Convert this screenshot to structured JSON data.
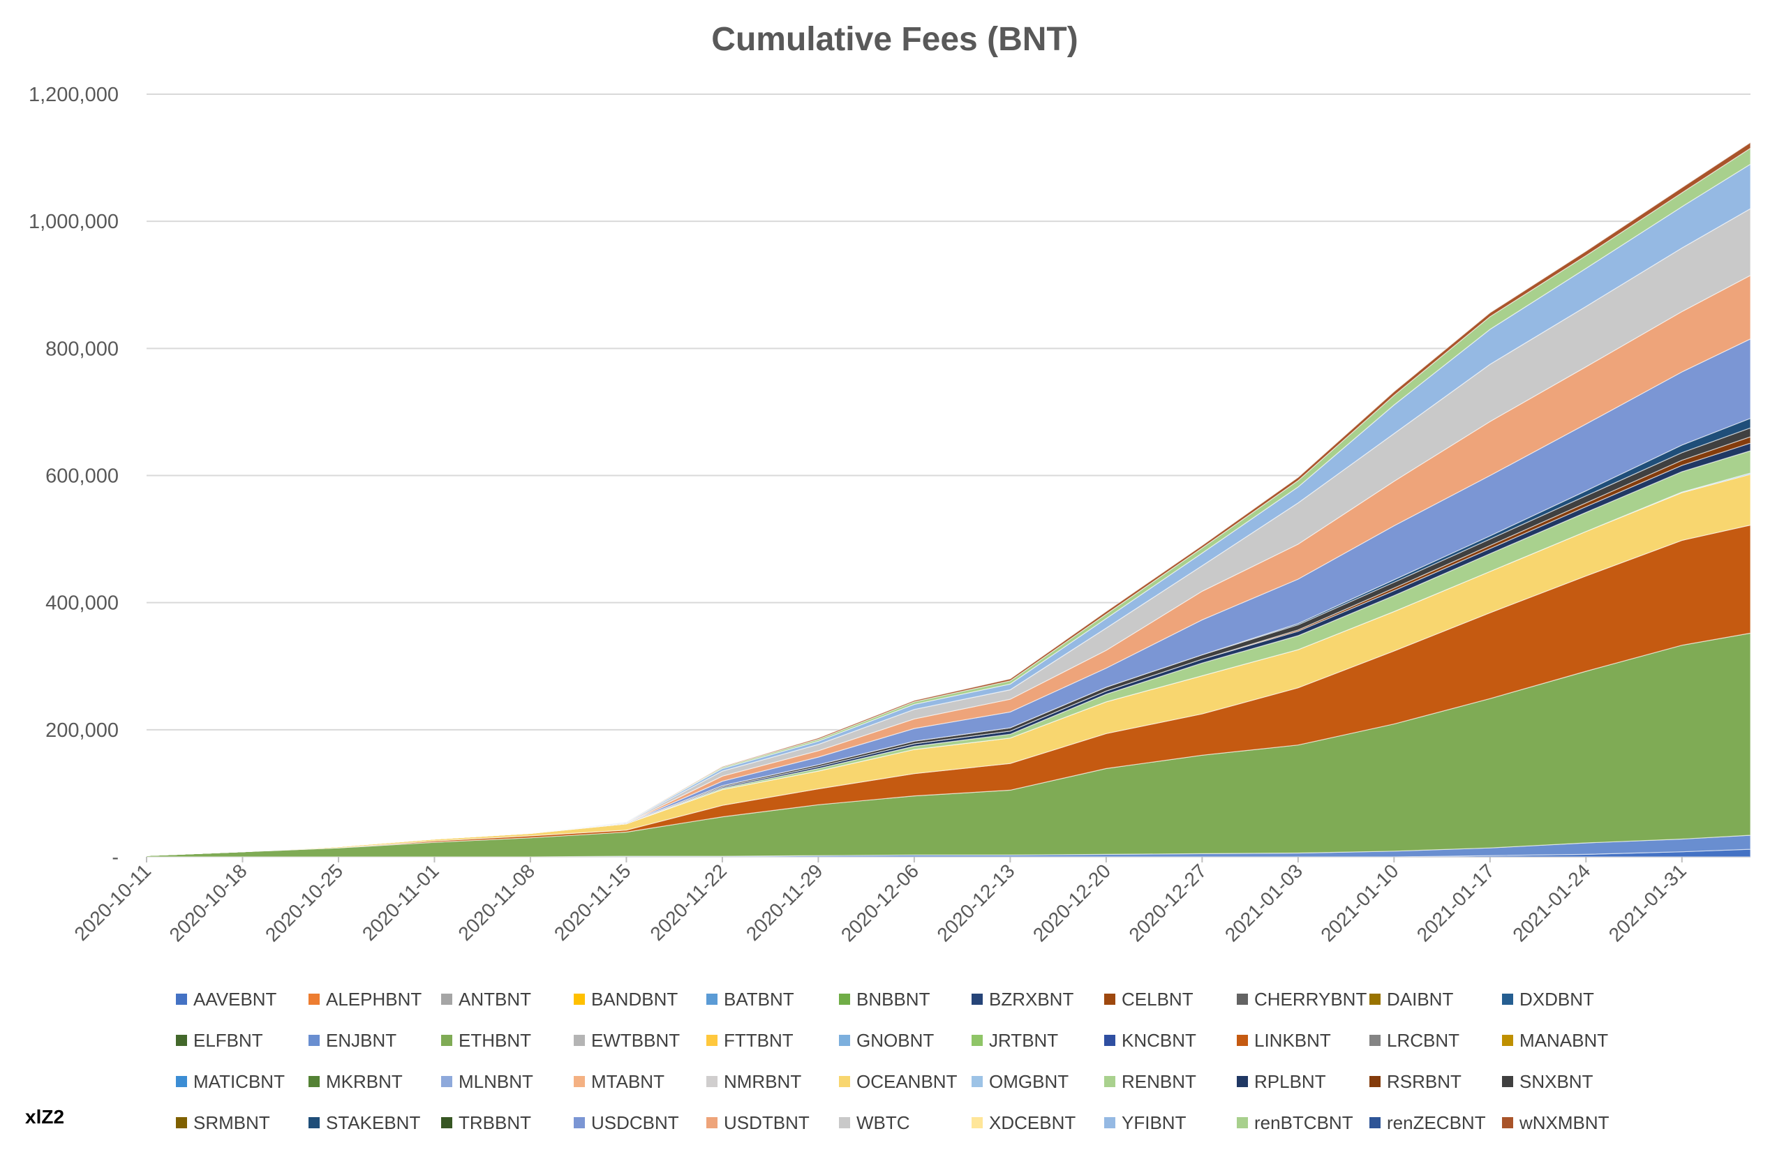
{
  "chart_data": {
    "type": "area",
    "stacked": true,
    "title": "Cumulative Fees (BNT)",
    "xlabel": "",
    "ylabel": "",
    "ylim": [
      0,
      1200000
    ],
    "y_ticks": [
      {
        "value": 0,
        "label": "-"
      },
      {
        "value": 200000,
        "label": "200,000"
      },
      {
        "value": 400000,
        "label": "400,000"
      },
      {
        "value": 600000,
        "label": "600,000"
      },
      {
        "value": 800000,
        "label": "800,000"
      },
      {
        "value": 1000000,
        "label": "1,000,000"
      },
      {
        "value": 1200000,
        "label": "1,200,000"
      }
    ],
    "x_tick_labels": [
      "2020-10-11",
      "2020-10-18",
      "2020-10-25",
      "2020-11-01",
      "2020-11-08",
      "2020-11-15",
      "2020-11-22",
      "2020-11-29",
      "2020-12-06",
      "2020-12-13",
      "2020-12-20",
      "2020-12-27",
      "2021-01-03",
      "2021-01-10",
      "2021-01-17",
      "2021-01-24",
      "2021-01-31"
    ],
    "x": [
      "2020-10-11",
      "2020-10-18",
      "2020-10-25",
      "2020-11-01",
      "2020-11-08",
      "2020-11-15",
      "2020-11-22",
      "2020-11-29",
      "2020-12-06",
      "2020-12-13",
      "2020-12-20",
      "2020-12-27",
      "2021-01-03",
      "2021-01-10",
      "2021-01-17",
      "2021-01-24",
      "2021-01-31",
      "2021-02-05"
    ],
    "grid": true,
    "legend_position": "bottom",
    "series": [
      {
        "name": "AAVEBNT",
        "color": "#4472c4",
        "values": [
          0,
          0,
          0,
          0,
          0,
          0,
          0,
          0,
          0,
          0,
          0,
          0,
          0,
          0,
          2000,
          4000,
          8000,
          12000
        ]
      },
      {
        "name": "ALEPHBNT",
        "color": "#ed7d31",
        "values": [
          0,
          0,
          0,
          0,
          0,
          0,
          0,
          0,
          0,
          0,
          0,
          0,
          0,
          0,
          0,
          0,
          0,
          0
        ]
      },
      {
        "name": "ANTBNT",
        "color": "#a5a5a5",
        "values": [
          0,
          0,
          0,
          0,
          0,
          0,
          0,
          0,
          0,
          0,
          0,
          0,
          0,
          0,
          0,
          0,
          0,
          0
        ]
      },
      {
        "name": "BANDBNT",
        "color": "#ffc000",
        "values": [
          0,
          0,
          0,
          0,
          0,
          0,
          0,
          0,
          0,
          0,
          0,
          0,
          0,
          0,
          0,
          0,
          0,
          0
        ]
      },
      {
        "name": "BATBNT",
        "color": "#5b9bd5",
        "values": [
          0,
          0,
          0,
          0,
          0,
          0,
          0,
          0,
          0,
          0,
          0,
          0,
          0,
          0,
          0,
          0,
          0,
          0
        ]
      },
      {
        "name": "BNBBNT",
        "color": "#70ad47",
        "values": [
          0,
          0,
          0,
          0,
          0,
          0,
          0,
          0,
          0,
          0,
          0,
          0,
          0,
          0,
          0,
          0,
          0,
          0
        ]
      },
      {
        "name": "BZRXBNT",
        "color": "#264478",
        "values": [
          0,
          0,
          0,
          0,
          0,
          0,
          0,
          0,
          0,
          0,
          0,
          0,
          0,
          0,
          0,
          0,
          0,
          0
        ]
      },
      {
        "name": "CELBNT",
        "color": "#9e480e",
        "values": [
          0,
          0,
          0,
          0,
          0,
          0,
          0,
          0,
          0,
          0,
          0,
          0,
          0,
          0,
          0,
          0,
          0,
          0
        ]
      },
      {
        "name": "CHERRYBNT",
        "color": "#636363",
        "values": [
          0,
          0,
          0,
          0,
          0,
          0,
          0,
          0,
          0,
          0,
          0,
          0,
          0,
          0,
          0,
          0,
          0,
          0
        ]
      },
      {
        "name": "DAIBNT",
        "color": "#997300",
        "values": [
          0,
          0,
          0,
          0,
          0,
          0,
          0,
          0,
          0,
          0,
          0,
          0,
          0,
          0,
          0,
          0,
          0,
          0
        ]
      },
      {
        "name": "DXDBNT",
        "color": "#255e91",
        "values": [
          0,
          0,
          0,
          0,
          0,
          0,
          0,
          0,
          0,
          0,
          0,
          0,
          0,
          0,
          0,
          0,
          0,
          0
        ]
      },
      {
        "name": "ELFBNT",
        "color": "#43682b",
        "values": [
          0,
          0,
          0,
          0,
          0,
          0,
          0,
          0,
          0,
          0,
          0,
          0,
          0,
          0,
          0,
          0,
          0,
          0
        ]
      },
      {
        "name": "ENJBNT",
        "color": "#698ed0",
        "values": [
          0,
          0,
          0,
          0,
          0,
          1000,
          1000,
          2000,
          3000,
          3000,
          4000,
          5000,
          6000,
          9000,
          12000,
          18000,
          20000,
          22000
        ]
      },
      {
        "name": "ETHBNT",
        "color": "#7fab55",
        "values": [
          2000,
          8000,
          14000,
          23000,
          30000,
          38000,
          62000,
          80000,
          93000,
          102000,
          135000,
          155000,
          170000,
          200000,
          235000,
          270000,
          305000,
          318000
        ]
      },
      {
        "name": "EWTBBNT",
        "color": "#b4b4b4",
        "values": [
          0,
          0,
          0,
          0,
          0,
          0,
          0,
          0,
          0,
          0,
          0,
          0,
          0,
          0,
          0,
          0,
          0,
          0
        ]
      },
      {
        "name": "FTTBNT",
        "color": "#ffc83d",
        "values": [
          0,
          0,
          0,
          0,
          0,
          0,
          0,
          0,
          0,
          0,
          0,
          0,
          0,
          0,
          0,
          0,
          0,
          0
        ]
      },
      {
        "name": "GNOBNT",
        "color": "#7cafdd",
        "values": [
          0,
          0,
          0,
          0,
          0,
          0,
          0,
          0,
          0,
          0,
          0,
          0,
          0,
          0,
          0,
          0,
          0,
          0
        ]
      },
      {
        "name": "JRTBNT",
        "color": "#8fc567",
        "values": [
          0,
          0,
          0,
          0,
          0,
          0,
          0,
          0,
          0,
          0,
          0,
          0,
          0,
          0,
          0,
          0,
          0,
          0
        ]
      },
      {
        "name": "KNCBNT",
        "color": "#2f4fa1",
        "values": [
          0,
          0,
          0,
          0,
          0,
          0,
          0,
          0,
          0,
          0,
          0,
          0,
          0,
          0,
          0,
          0,
          0,
          0
        ]
      },
      {
        "name": "LINKBNT",
        "color": "#c55a11",
        "values": [
          0,
          0,
          0,
          2000,
          3000,
          3000,
          18000,
          25000,
          35000,
          42000,
          55000,
          65000,
          90000,
          115000,
          135000,
          150000,
          165000,
          170000
        ]
      },
      {
        "name": "LRCBNT",
        "color": "#848484",
        "values": [
          0,
          0,
          0,
          0,
          0,
          0,
          0,
          0,
          0,
          0,
          0,
          0,
          0,
          0,
          0,
          0,
          0,
          0
        ]
      },
      {
        "name": "MANABNT",
        "color": "#bf9000",
        "values": [
          0,
          0,
          0,
          0,
          0,
          0,
          0,
          0,
          0,
          0,
          0,
          0,
          0,
          0,
          0,
          0,
          0,
          0
        ]
      },
      {
        "name": "MATICBNT",
        "color": "#3c8dd4",
        "values": [
          0,
          0,
          0,
          0,
          0,
          0,
          0,
          0,
          0,
          0,
          0,
          0,
          0,
          0,
          0,
          0,
          0,
          0
        ]
      },
      {
        "name": "MKRBNT",
        "color": "#548235",
        "values": [
          0,
          0,
          0,
          0,
          0,
          0,
          0,
          0,
          0,
          0,
          0,
          0,
          0,
          0,
          0,
          0,
          0,
          0
        ]
      },
      {
        "name": "MLNBNT",
        "color": "#8ea9db",
        "values": [
          0,
          0,
          0,
          0,
          0,
          0,
          0,
          0,
          0,
          0,
          0,
          0,
          0,
          0,
          0,
          0,
          0,
          0
        ]
      },
      {
        "name": "MTABNT",
        "color": "#f4b183",
        "values": [
          0,
          0,
          0,
          0,
          0,
          0,
          0,
          0,
          0,
          0,
          0,
          0,
          0,
          0,
          0,
          0,
          0,
          0
        ]
      },
      {
        "name": "NMRBNT",
        "color": "#d0cece",
        "values": [
          0,
          0,
          0,
          0,
          0,
          0,
          0,
          0,
          0,
          0,
          0,
          0,
          0,
          0,
          0,
          0,
          0,
          0
        ]
      },
      {
        "name": "OCEANBNT",
        "color": "#f8d66f",
        "values": [
          0,
          0,
          2000,
          3000,
          4000,
          10000,
          25000,
          28000,
          38000,
          40000,
          50000,
          60000,
          60000,
          62000,
          65000,
          70000,
          75000,
          80000
        ]
      },
      {
        "name": "OMGBNT",
        "color": "#9dc3e6",
        "values": [
          0,
          0,
          0,
          0,
          0,
          0,
          0,
          0,
          0,
          0,
          0,
          0,
          0,
          0,
          0,
          0,
          1000,
          2000
        ]
      },
      {
        "name": "RENBNT",
        "color": "#a9d18e",
        "values": [
          0,
          0,
          0,
          0,
          0,
          0,
          2000,
          4000,
          5000,
          6000,
          12000,
          20000,
          22000,
          25000,
          28000,
          30000,
          32000,
          35000
        ]
      },
      {
        "name": "RPLBNT",
        "color": "#203864",
        "values": [
          0,
          0,
          0,
          0,
          0,
          0,
          2000,
          3000,
          4000,
          5000,
          5000,
          6000,
          7000,
          8000,
          8000,
          9000,
          10000,
          12000
        ]
      },
      {
        "name": "RSRBNT",
        "color": "#843c0c",
        "values": [
          0,
          0,
          0,
          0,
          0,
          0,
          0,
          0,
          0,
          0,
          0,
          0,
          2000,
          4000,
          5000,
          6000,
          8000,
          10000
        ]
      },
      {
        "name": "SNXBNT",
        "color": "#404040",
        "values": [
          0,
          0,
          0,
          0,
          0,
          1000,
          2000,
          3000,
          4000,
          5000,
          6000,
          7000,
          8000,
          9000,
          10000,
          11000,
          12000,
          14000
        ]
      },
      {
        "name": "SRMBNT",
        "color": "#7f6000",
        "values": [
          0,
          0,
          0,
          0,
          0,
          0,
          0,
          0,
          0,
          0,
          0,
          0,
          0,
          0,
          0,
          0,
          0,
          0
        ]
      },
      {
        "name": "STAKEBNT",
        "color": "#1f4e79",
        "values": [
          0,
          0,
          0,
          0,
          0,
          0,
          0,
          0,
          0,
          0,
          0,
          0,
          2000,
          4000,
          5000,
          8000,
          12000,
          15000
        ]
      },
      {
        "name": "TRBBNT",
        "color": "#375623",
        "values": [
          0,
          0,
          0,
          0,
          0,
          0,
          0,
          0,
          0,
          0,
          0,
          0,
          0,
          0,
          0,
          0,
          0,
          0
        ]
      },
      {
        "name": "USDCBNT",
        "color": "#7b96d4",
        "values": [
          0,
          0,
          0,
          0,
          0,
          0,
          7000,
          12000,
          20000,
          25000,
          30000,
          55000,
          70000,
          85000,
          95000,
          105000,
          115000,
          125000
        ]
      },
      {
        "name": "USDTBNT",
        "color": "#eea47a",
        "values": [
          0,
          0,
          0,
          0,
          0,
          0,
          8000,
          10000,
          15000,
          20000,
          28000,
          45000,
          55000,
          70000,
          85000,
          90000,
          95000,
          100000
        ]
      },
      {
        "name": "WBTC",
        "color": "#c9c9c9",
        "values": [
          0,
          0,
          0,
          0,
          0,
          1000,
          8000,
          10000,
          15000,
          15000,
          35000,
          40000,
          65000,
          75000,
          90000,
          95000,
          100000,
          105000
        ]
      },
      {
        "name": "XDCEBNT",
        "color": "#ffe699",
        "values": [
          0,
          0,
          0,
          0,
          0,
          0,
          0,
          0,
          0,
          0,
          0,
          0,
          0,
          0,
          0,
          0,
          0,
          0
        ]
      },
      {
        "name": "YFIBNT",
        "color": "#95b9e3",
        "values": [
          0,
          0,
          0,
          0,
          0,
          1000,
          4000,
          5000,
          8000,
          9000,
          15000,
          20000,
          25000,
          45000,
          55000,
          60000,
          65000,
          70000
        ]
      },
      {
        "name": "renBTCBNT",
        "color": "#a8d08d",
        "values": [
          0,
          0,
          0,
          0,
          0,
          0,
          2000,
          3000,
          4000,
          5000,
          7000,
          8000,
          10000,
          15000,
          20000,
          20000,
          22000,
          25000
        ]
      },
      {
        "name": "renZECBNT",
        "color": "#2e5597",
        "values": [
          0,
          0,
          0,
          0,
          0,
          0,
          0,
          0,
          0,
          0,
          0,
          0,
          0,
          0,
          0,
          0,
          0,
          0
        ]
      },
      {
        "name": "wNXMBNT",
        "color": "#a9542a",
        "values": [
          0,
          0,
          0,
          0,
          0,
          0,
          1000,
          2000,
          2000,
          3000,
          4000,
          4000,
          5000,
          6000,
          6000,
          7000,
          8000,
          9000
        ]
      }
    ]
  },
  "watermark": "xlZ2"
}
